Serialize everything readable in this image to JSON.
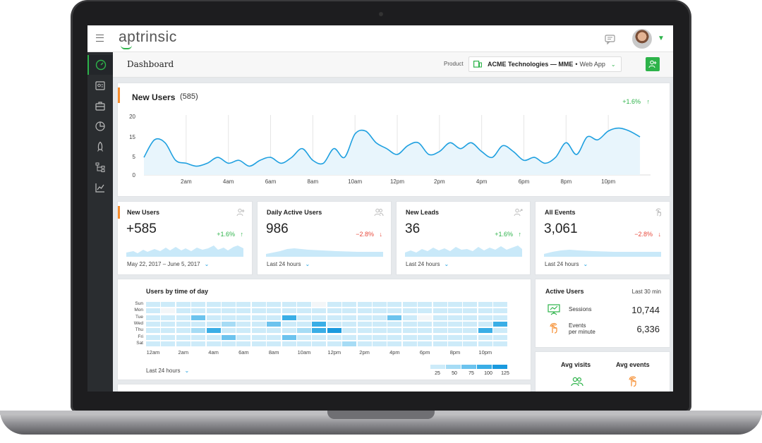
{
  "app": {
    "logo": "aptrinsic"
  },
  "header": {
    "title": "Dashboard",
    "product_label": "Product",
    "product_name": "ACME Technologies — MME",
    "product_sep": "•",
    "product_type": "Web App"
  },
  "sidebar": {
    "items": [
      "dashboard-gauge-icon",
      "user-profile-icon",
      "briefcase-icon",
      "pie-chart-icon",
      "rocket-icon",
      "flow-icon",
      "line-chart-icon"
    ]
  },
  "new_users_chart": {
    "title": "New Users",
    "count": "(585)",
    "trend": "+1.6%",
    "trend_arrow": "↑"
  },
  "chart_data": [
    {
      "type": "area",
      "title": "New Users",
      "x_ticks": [
        "2am",
        "4am",
        "6am",
        "8am",
        "10am",
        "12pm",
        "2pm",
        "4pm",
        "6pm",
        "8pm",
        "10pm"
      ],
      "y_ticks": [
        "20",
        "15",
        "5",
        "0"
      ],
      "ylim": [
        0,
        20
      ],
      "x": [
        0,
        0.5,
        1,
        1.5,
        2,
        2.5,
        3,
        3.5,
        4,
        4.5,
        5,
        5.5,
        6,
        6.5,
        7,
        7.5,
        8,
        8.5,
        9,
        9.5,
        10,
        10.5,
        11,
        11.5,
        12,
        12.5,
        13,
        13.5,
        14,
        14.5,
        15,
        15.5,
        16,
        16.5,
        17,
        17.5,
        18,
        18.5,
        19,
        19.5,
        20,
        20.5,
        21,
        21.5,
        22,
        22.5,
        23,
        23.5
      ],
      "values": [
        6,
        12,
        11,
        5,
        4,
        3,
        4,
        6,
        4,
        5,
        3,
        5,
        6,
        4,
        6,
        9,
        5,
        4,
        9,
        6,
        14,
        15,
        11,
        9,
        7,
        10,
        11,
        7,
        8,
        11,
        9,
        11,
        8,
        6,
        10,
        8,
        5,
        6,
        4,
        6,
        11,
        7,
        13,
        12,
        15,
        16,
        15,
        13
      ]
    },
    {
      "type": "heatmap",
      "title": "Users by time of day",
      "rows": [
        "Sun",
        "Mon",
        "Tue",
        "Wed",
        "Thu",
        "Fri",
        "Sat"
      ],
      "x_ticks": [
        "12am",
        "2am",
        "4am",
        "6am",
        "8am",
        "10am",
        "12pm",
        "2pm",
        "4pm",
        "6pm",
        "8pm",
        "10pm"
      ],
      "legend": [
        "25",
        "50",
        "75",
        "100",
        "125"
      ],
      "values": [
        [
          1,
          1,
          1,
          1,
          1,
          1,
          1,
          1,
          1,
          1,
          1,
          0,
          1,
          1,
          1,
          1,
          1,
          1,
          1,
          1,
          1,
          1,
          1,
          1
        ],
        [
          1,
          0,
          1,
          1,
          1,
          1,
          1,
          1,
          1,
          1,
          1,
          1,
          1,
          1,
          1,
          1,
          1,
          1,
          1,
          1,
          1,
          1,
          1,
          1
        ],
        [
          1,
          1,
          1,
          3,
          1,
          1,
          1,
          1,
          1,
          4,
          1,
          1,
          1,
          1,
          1,
          1,
          3,
          1,
          0,
          1,
          1,
          1,
          1,
          1
        ],
        [
          1,
          1,
          1,
          1,
          1,
          2,
          1,
          1,
          3,
          1,
          1,
          4,
          1,
          1,
          1,
          1,
          1,
          1,
          1,
          1,
          1,
          1,
          1,
          4
        ],
        [
          1,
          1,
          1,
          2,
          4,
          1,
          1,
          1,
          1,
          1,
          2,
          4,
          5,
          1,
          1,
          1,
          1,
          1,
          1,
          1,
          1,
          1,
          4,
          1
        ],
        [
          1,
          1,
          1,
          1,
          1,
          3,
          1,
          1,
          1,
          3,
          1,
          1,
          1,
          1,
          1,
          1,
          1,
          1,
          1,
          1,
          1,
          1,
          1,
          1
        ],
        [
          1,
          1,
          1,
          1,
          1,
          1,
          1,
          1,
          1,
          1,
          1,
          1,
          1,
          2,
          1,
          1,
          1,
          1,
          1,
          1,
          1,
          1,
          1,
          1
        ]
      ]
    }
  ],
  "stats": [
    {
      "title": "New Users",
      "value": "+585",
      "trend": "+1.6%",
      "trend_arrow": "↑",
      "dir": "up",
      "range": "May 22, 2017 – June 5, 2017",
      "chevron": "⌄"
    },
    {
      "title": "Daily Active Users",
      "value": "986",
      "trend": "−2.8%",
      "trend_arrow": "↓",
      "dir": "down",
      "range": "Last 24 hours",
      "chevron": "⌄"
    },
    {
      "title": "New Leads",
      "value": "36",
      "trend": "+1.6%",
      "trend_arrow": "↑",
      "dir": "up",
      "range": "Last 24 hours",
      "chevron": "⌄"
    },
    {
      "title": "All Events",
      "value": "3,061",
      "trend": "−2.8%",
      "trend_arrow": "↓",
      "dir": "down",
      "range": "Last 24 hours",
      "chevron": "⌄"
    }
  ],
  "heatmap_card": {
    "range": "Last 24 hours",
    "chevron": "⌄"
  },
  "active_users": {
    "title": "Active Users",
    "period": "Last 30 min",
    "sessions_label": "Sessions",
    "sessions_value": "10,744",
    "events_label_1": "Events",
    "events_label_2": "per minute",
    "events_value": "6,336"
  },
  "averages": {
    "visits_label": "Avg visits",
    "events_label": "Avg events"
  },
  "colors": {
    "accent": "#2db34a",
    "orange": "#f68d2e",
    "line": "#1fa0e0",
    "down": "#e8493c"
  }
}
